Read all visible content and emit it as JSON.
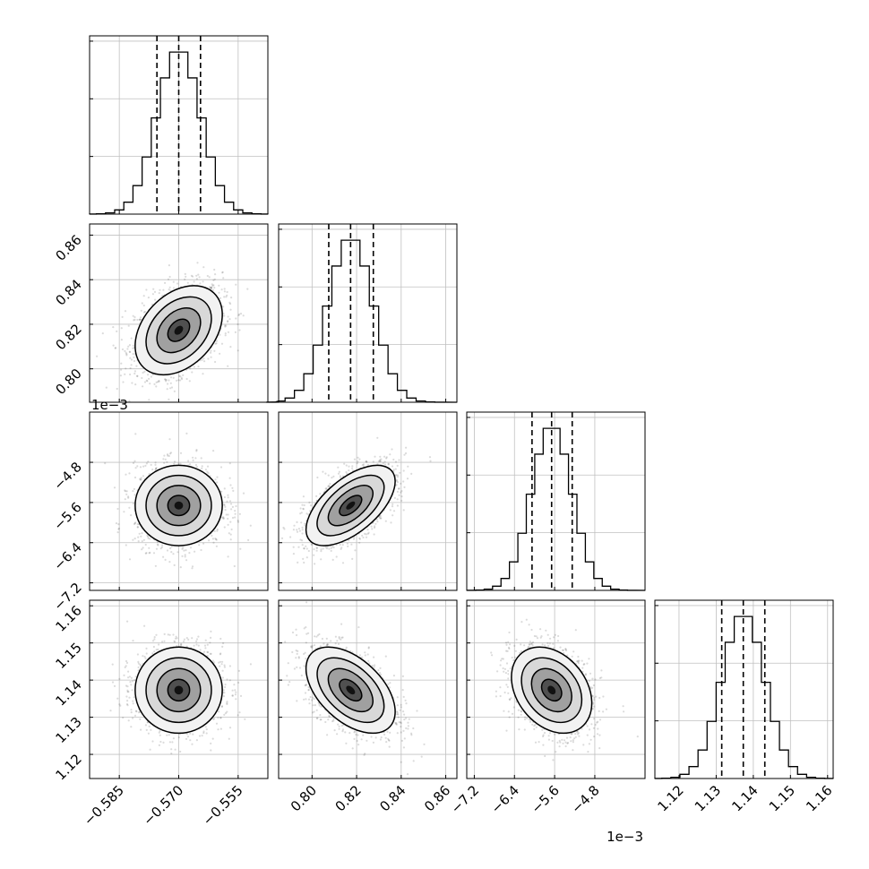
{
  "chart_data": {
    "type": "corner",
    "grid": true,
    "parameters": [
      {
        "index": 0,
        "range": [
          -0.5925,
          -0.5475
        ],
        "ticks": [
          -0.585,
          -0.57,
          -0.555
        ],
        "tick_labels": [
          "−0.585",
          "−0.570",
          "−0.555"
        ],
        "quantiles": [
          -0.5755,
          -0.57,
          -0.5645
        ],
        "mean": -0.57,
        "sd": 0.0055,
        "exponent_label": ""
      },
      {
        "index": 1,
        "range": [
          0.785,
          0.865
        ],
        "ticks": [
          0.8,
          0.82,
          0.84,
          0.86
        ],
        "tick_labels": [
          "0.80",
          "0.82",
          "0.84",
          "0.86"
        ],
        "quantiles": [
          0.8075,
          0.8173,
          0.8275
        ],
        "mean": 0.8173,
        "sd": 0.01,
        "exponent_label": ""
      },
      {
        "index": 2,
        "range": [
          -7.35,
          -3.8
        ],
        "ticks": [
          -7.2,
          -6.4,
          -5.6,
          -4.8
        ],
        "tick_labels": [
          "−7.2",
          "−6.4",
          "−5.6",
          "−4.8"
        ],
        "quantiles": [
          -6.05,
          -5.66,
          -5.25
        ],
        "mean": -5.66,
        "sd": 0.4,
        "exponent_label": "1e−3"
      },
      {
        "index": 3,
        "range": [
          1.1135,
          1.1615
        ],
        "ticks": [
          1.12,
          1.13,
          1.14,
          1.15,
          1.16
        ],
        "tick_labels": [
          "1.12",
          "1.13",
          "1.14",
          "1.15",
          "1.16"
        ],
        "quantiles": [
          1.1315,
          1.1373,
          1.1431
        ],
        "mean": 1.1373,
        "sd": 0.0058,
        "exponent_label": ""
      }
    ],
    "correlations": {
      "1-0": 0.35,
      "2-0": 0.0,
      "2-1": 0.6,
      "3-0": 0.0,
      "3-1": -0.5,
      "3-2": -0.3
    }
  }
}
